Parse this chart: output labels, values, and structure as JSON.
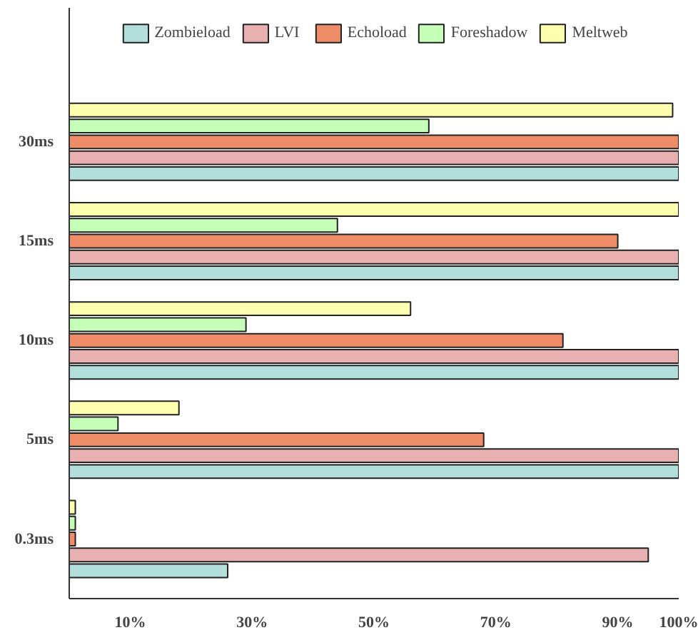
{
  "chart_data": {
    "type": "bar",
    "orientation": "horizontal",
    "categories": [
      "30ms",
      "15ms",
      "10ms",
      "5ms",
      "0.3ms"
    ],
    "series": [
      {
        "name": "Zombieload",
        "color": "#b2dfdb",
        "values": [
          100,
          100,
          100,
          100,
          26
        ]
      },
      {
        "name": "LVI",
        "color": "#e8b0b0",
        "values": [
          100,
          100,
          100,
          100,
          95
        ]
      },
      {
        "name": "Echoload",
        "color": "#ef8c68",
        "values": [
          100,
          90,
          81,
          68,
          1
        ]
      },
      {
        "name": "Foreshadow",
        "color": "#c6ffb8",
        "values": [
          59,
          44,
          29,
          8,
          1
        ]
      },
      {
        "name": "Meltweb",
        "color": "#ffffb0",
        "values": [
          99,
          100,
          56,
          18,
          1
        ]
      }
    ],
    "xlim": [
      0,
      100
    ],
    "xticks": [
      {
        "value": 10,
        "label": "10%"
      },
      {
        "value": 30,
        "label": "30%"
      },
      {
        "value": 50,
        "label": "50%"
      },
      {
        "value": 70,
        "label": "70%"
      },
      {
        "value": 90,
        "label": "90%"
      },
      {
        "value": 100,
        "label": "100%"
      }
    ],
    "grid": false,
    "legend": "top"
  }
}
